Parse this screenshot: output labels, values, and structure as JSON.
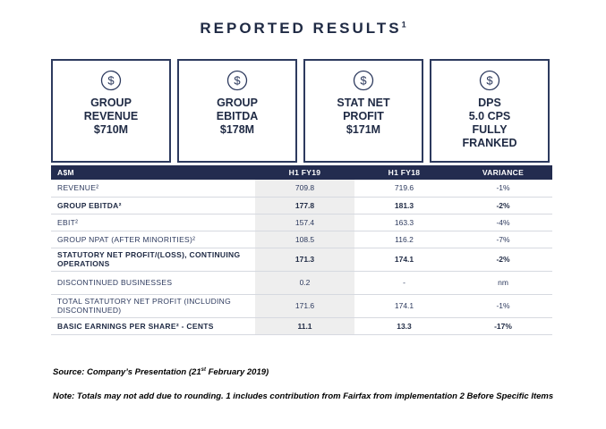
{
  "title": {
    "text": "REPORTED RESULTS",
    "superscript": "1"
  },
  "icon": "dollar-circle-icon",
  "colors": {
    "navy": "#232c4f",
    "text": "#2d3a5e",
    "shade": "#eeeeee"
  },
  "cards": [
    {
      "lines": [
        "GROUP",
        "REVENUE",
        "$710M"
      ]
    },
    {
      "lines": [
        "GROUP",
        "EBITDA",
        "$178M"
      ]
    },
    {
      "lines": [
        "STAT NET",
        "PROFIT",
        "$171M"
      ]
    },
    {
      "lines": [
        "DPS",
        "5.0 CPS",
        "FULLY",
        "FRANKED"
      ]
    }
  ],
  "table": {
    "headers": [
      "A$M",
      "H1 FY19",
      "H1 FY18",
      "VARIANCE"
    ],
    "rows": [
      {
        "label": "REVENUE²",
        "h1fy19": "709.8",
        "h1fy18": "719.6",
        "variance": "-1%",
        "bold": false
      },
      {
        "label": "GROUP EBITDA²",
        "h1fy19": "177.8",
        "h1fy18": "181.3",
        "variance": "-2%",
        "bold": true
      },
      {
        "label": "EBIT²",
        "h1fy19": "157.4",
        "h1fy18": "163.3",
        "variance": "-4%",
        "bold": false
      },
      {
        "label": "GROUP NPAT (AFTER MINORITIES)²",
        "h1fy19": "108.5",
        "h1fy18": "116.2",
        "variance": "-7%",
        "bold": false
      },
      {
        "label": "STATUTORY NET PROFIT/(LOSS), CONTINUING OPERATIONS",
        "h1fy19": "171.3",
        "h1fy18": "174.1",
        "variance": "-2%",
        "bold": true
      },
      {
        "label": "DISCONTINUED BUSINESSES",
        "h1fy19": "0.2",
        "h1fy18": "-",
        "variance": "nm",
        "bold": false
      },
      {
        "label": "TOTAL STATUTORY NET PROFIT (INCLUDING DISCONTINUED)",
        "h1fy19": "171.6",
        "h1fy18": "174.1",
        "variance": "-1%",
        "bold": false
      },
      {
        "label": "BASIC EARNINGS PER SHARE² - CENTS",
        "h1fy19": "11.1",
        "h1fy18": "13.3",
        "variance": "-17%",
        "bold": true
      }
    ]
  },
  "source": {
    "prefix": "Source: Company’s Presentation (21",
    "sup": "st",
    "suffix": " February 2019)"
  },
  "note": "Note: Totals may not add due to rounding. 1 includes contribution from Fairfax from implementation 2 Before Specific Items"
}
